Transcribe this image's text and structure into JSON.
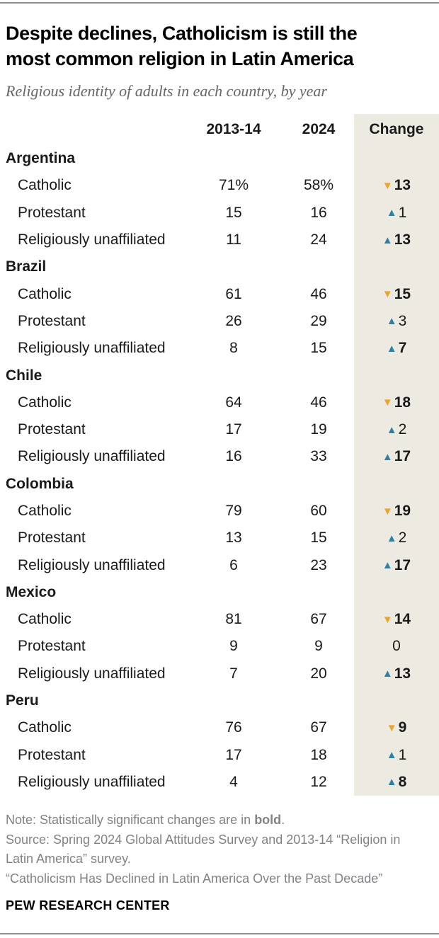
{
  "header": {
    "title_line1": "Despite declines, Catholicism is still the",
    "title_line2": "most common religion in Latin America",
    "subtitle": "Religious identity of adults in each country, by year"
  },
  "chart_data": {
    "type": "table",
    "title": "Despite declines, Catholicism is still the most common religion in Latin America",
    "subtitle": "Religious identity of adults in each country, by year",
    "columns": [
      "2013-14",
      "2024",
      "Change"
    ],
    "groups": [
      {
        "country": "Argentina",
        "rows": [
          {
            "label": "Catholic",
            "v2013": "71%",
            "v2024": "58%",
            "change": "13",
            "dir": "down",
            "sig": true
          },
          {
            "label": "Protestant",
            "v2013": "15",
            "v2024": "16",
            "change": "1",
            "dir": "up",
            "sig": false
          },
          {
            "label": "Religiously unaffiliated",
            "v2013": "11",
            "v2024": "24",
            "change": "13",
            "dir": "up",
            "sig": true
          }
        ]
      },
      {
        "country": "Brazil",
        "rows": [
          {
            "label": "Catholic",
            "v2013": "61",
            "v2024": "46",
            "change": "15",
            "dir": "down",
            "sig": true
          },
          {
            "label": "Protestant",
            "v2013": "26",
            "v2024": "29",
            "change": "3",
            "dir": "up",
            "sig": false
          },
          {
            "label": "Religiously unaffiliated",
            "v2013": "8",
            "v2024": "15",
            "change": "7",
            "dir": "up",
            "sig": true
          }
        ]
      },
      {
        "country": "Chile",
        "rows": [
          {
            "label": "Catholic",
            "v2013": "64",
            "v2024": "46",
            "change": "18",
            "dir": "down",
            "sig": true
          },
          {
            "label": "Protestant",
            "v2013": "17",
            "v2024": "19",
            "change": "2",
            "dir": "up",
            "sig": false
          },
          {
            "label": "Religiously unaffiliated",
            "v2013": "16",
            "v2024": "33",
            "change": "17",
            "dir": "up",
            "sig": true
          }
        ]
      },
      {
        "country": "Colombia",
        "rows": [
          {
            "label": "Catholic",
            "v2013": "79",
            "v2024": "60",
            "change": "19",
            "dir": "down",
            "sig": true
          },
          {
            "label": "Protestant",
            "v2013": "13",
            "v2024": "15",
            "change": "2",
            "dir": "up",
            "sig": false
          },
          {
            "label": "Religiously unaffiliated",
            "v2013": "6",
            "v2024": "23",
            "change": "17",
            "dir": "up",
            "sig": true
          }
        ]
      },
      {
        "country": "Mexico",
        "rows": [
          {
            "label": "Catholic",
            "v2013": "81",
            "v2024": "67",
            "change": "14",
            "dir": "down",
            "sig": true
          },
          {
            "label": "Protestant",
            "v2013": "9",
            "v2024": "9",
            "change": "0",
            "dir": "none",
            "sig": false
          },
          {
            "label": "Religiously unaffiliated",
            "v2013": "7",
            "v2024": "20",
            "change": "13",
            "dir": "up",
            "sig": true
          }
        ]
      },
      {
        "country": "Peru",
        "rows": [
          {
            "label": "Catholic",
            "v2013": "76",
            "v2024": "67",
            "change": "9",
            "dir": "down",
            "sig": true
          },
          {
            "label": "Protestant",
            "v2013": "17",
            "v2024": "18",
            "change": "1",
            "dir": "up",
            "sig": false
          },
          {
            "label": "Religiously unaffiliated",
            "v2013": "4",
            "v2024": "12",
            "change": "8",
            "dir": "up",
            "sig": true
          }
        ]
      }
    ]
  },
  "footer": {
    "note_prefix": "Note: Statistically significant changes are in ",
    "note_bold": "bold",
    "note_suffix": ".",
    "source": "Source: Spring 2024 Global Attitudes Survey and 2013-14 “Religion in Latin America” survey.",
    "quote": "“Catholicism Has Declined in Latin America Over the Past Decade”",
    "brand": "PEW RESEARCH CENTER"
  },
  "colors": {
    "up_triangle": "#2E80A4",
    "down_triangle": "#EFA32B",
    "change_col_bg": "#EDEAE2"
  }
}
